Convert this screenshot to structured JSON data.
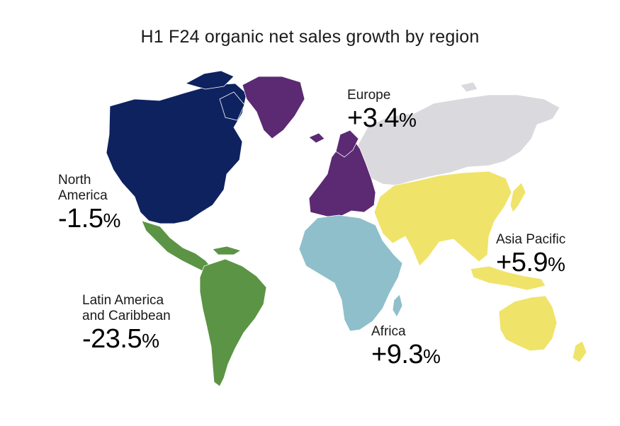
{
  "title": "H1 F24 organic net sales growth by region",
  "regions": [
    {
      "key": "north_america",
      "name": "North America",
      "name_lines": [
        "North",
        "America"
      ],
      "value": "-1.5",
      "unit": "%",
      "color": "#0e2260"
    },
    {
      "key": "latin_america",
      "name": "Latin America and Caribbean",
      "name_lines": [
        "Latin America",
        "and Caribbean"
      ],
      "value": "-23.5",
      "unit": "%",
      "color": "#5b9444"
    },
    {
      "key": "europe",
      "name": "Europe",
      "name_lines": [
        "Europe"
      ],
      "value": "+3.4",
      "unit": "%",
      "color": "#5b2a73"
    },
    {
      "key": "africa",
      "name": "Africa",
      "name_lines": [
        "Africa"
      ],
      "value": "+9.3",
      "unit": "%",
      "color": "#8fbfcb"
    },
    {
      "key": "asia_pacific",
      "name": "Asia Pacific",
      "name_lines": [
        "Asia Pacific"
      ],
      "value": "+5.9",
      "unit": "%",
      "color": "#f0e36a"
    }
  ],
  "other_land_color": "#d9d9de"
}
